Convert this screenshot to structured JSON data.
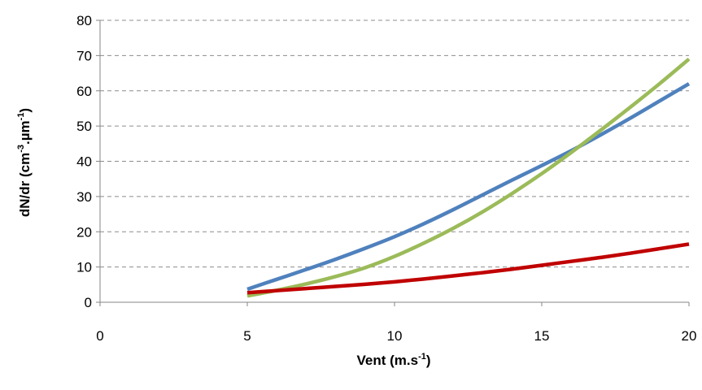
{
  "chart_data": {
    "type": "line",
    "title": "",
    "xlabel": "Vent (m.s",
    "xlabel_sup": "-1",
    "xlabel_end": ")",
    "ylabel": "dN/dr (cm",
    "ylabel_sup1": "-3",
    "ylabel_mid": ".µm",
    "ylabel_sup2": "-1",
    "ylabel_end": ")",
    "xlim": [
      0,
      20
    ],
    "ylim": [
      0,
      80
    ],
    "xticks": [
      0,
      5,
      10,
      15,
      20
    ],
    "yticks": [
      0,
      10,
      20,
      30,
      40,
      50,
      60,
      70,
      80
    ],
    "grid": "horizontal-dashed",
    "legend": "none",
    "series": [
      {
        "color": "#4f81bd",
        "x": [
          5,
          6,
          7,
          8,
          9,
          10,
          11,
          12,
          13,
          14,
          15,
          16,
          17,
          18,
          19,
          20
        ],
        "y": [
          3.7,
          6.5,
          9.3,
          12.2,
          15.3,
          18.6,
          22.3,
          26.3,
          30.5,
          34.7,
          38.8,
          43.0,
          47.5,
          52.2,
          57.1,
          62.0
        ]
      },
      {
        "color": "#9bbb59",
        "x": [
          5,
          6,
          7,
          8,
          9,
          10,
          11,
          12,
          13,
          14,
          15,
          16,
          17,
          18,
          19,
          20
        ],
        "y": [
          1.8,
          3.4,
          5.2,
          7.3,
          9.8,
          13.0,
          16.8,
          21.0,
          25.7,
          30.9,
          36.5,
          42.5,
          48.8,
          55.3,
          62.0,
          69.0
        ]
      },
      {
        "color": "#c00000",
        "x": [
          5,
          6,
          7,
          8,
          9,
          10,
          11,
          12,
          13,
          14,
          15,
          16,
          17,
          18,
          19,
          20
        ],
        "y": [
          2.7,
          3.3,
          3.9,
          4.5,
          5.1,
          5.8,
          6.6,
          7.5,
          8.4,
          9.4,
          10.5,
          11.6,
          12.7,
          13.9,
          15.2,
          16.5
        ]
      }
    ]
  }
}
